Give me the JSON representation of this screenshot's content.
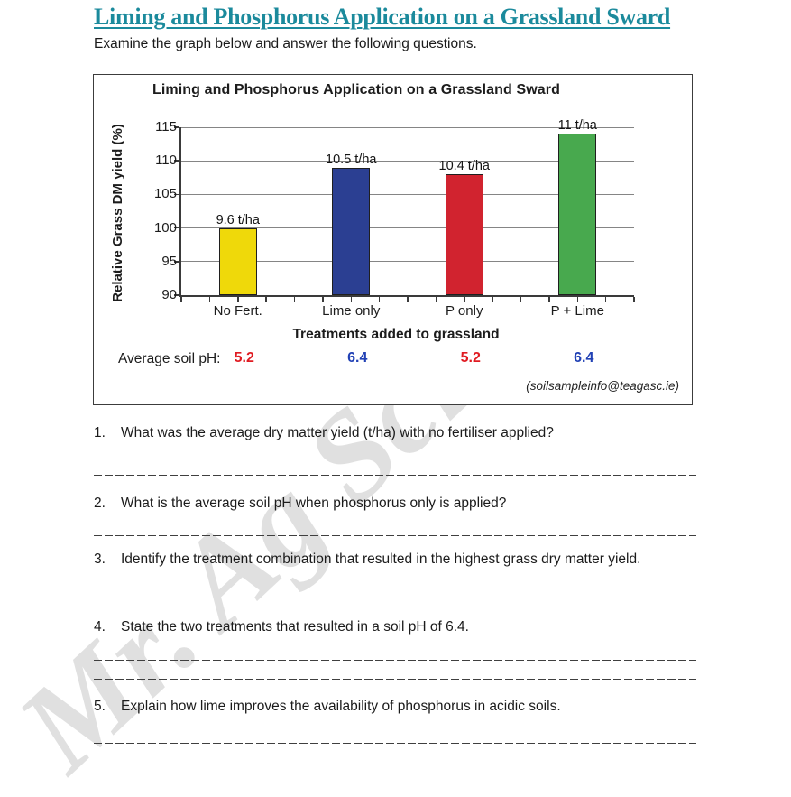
{
  "page": {
    "title": "Liming and Phosphorus Application on a Grassland Sward",
    "subtitle": "Examine the graph below and answer the following questions.",
    "title_color": "#1b8a9c",
    "watermark": "Mr. Ag Science"
  },
  "chart_data": {
    "type": "bar",
    "title": "Liming and Phosphorus Application on a Grassland Sward",
    "xlabel": "Treatments added to grassland",
    "ylabel": "Relative Grass DM yield (%)",
    "ylim": [
      90,
      115
    ],
    "ytick_step": 5,
    "ytick_labels": [
      "115",
      "110",
      "105",
      "100",
      "95",
      "90"
    ],
    "grid": "horizontal",
    "categories": [
      "No Fert.",
      "Lime only",
      "P only",
      "P + Lime"
    ],
    "values": [
      100,
      109,
      108,
      114
    ],
    "bar_labels": [
      "9.6 t/ha",
      "10.5 t/ha",
      "10.4 t/ha",
      "11 t/ha"
    ],
    "bar_colors": [
      "#efd90a",
      "#2b3f92",
      "#d1232f",
      "#48a94e"
    ],
    "avg_soil_ph": {
      "label": "Average soil pH:",
      "values": [
        "5.2",
        "6.4",
        "5.2",
        "6.4"
      ],
      "value_colors": [
        "#e01b22",
        "#2141b5",
        "#e01b22",
        "#2141b5"
      ]
    },
    "source": "(soilsampleinfo@teagasc.ie)"
  },
  "questions": [
    {
      "number": "1.",
      "text": "What was the average dry matter yield (t/ha) with no fertiliser applied?"
    },
    {
      "number": "2.",
      "text": "What is the average soil pH when phosphorus only is applied?"
    },
    {
      "number": "3.",
      "text": "Identify the treatment combination that resulted in the highest grass dry matter yield."
    },
    {
      "number": "4.",
      "text": "State the two treatments that resulted in a soil pH of 6.4."
    },
    {
      "number": "5.",
      "text": "Explain how lime improves the availability of phosphorus in acidic soils."
    }
  ]
}
